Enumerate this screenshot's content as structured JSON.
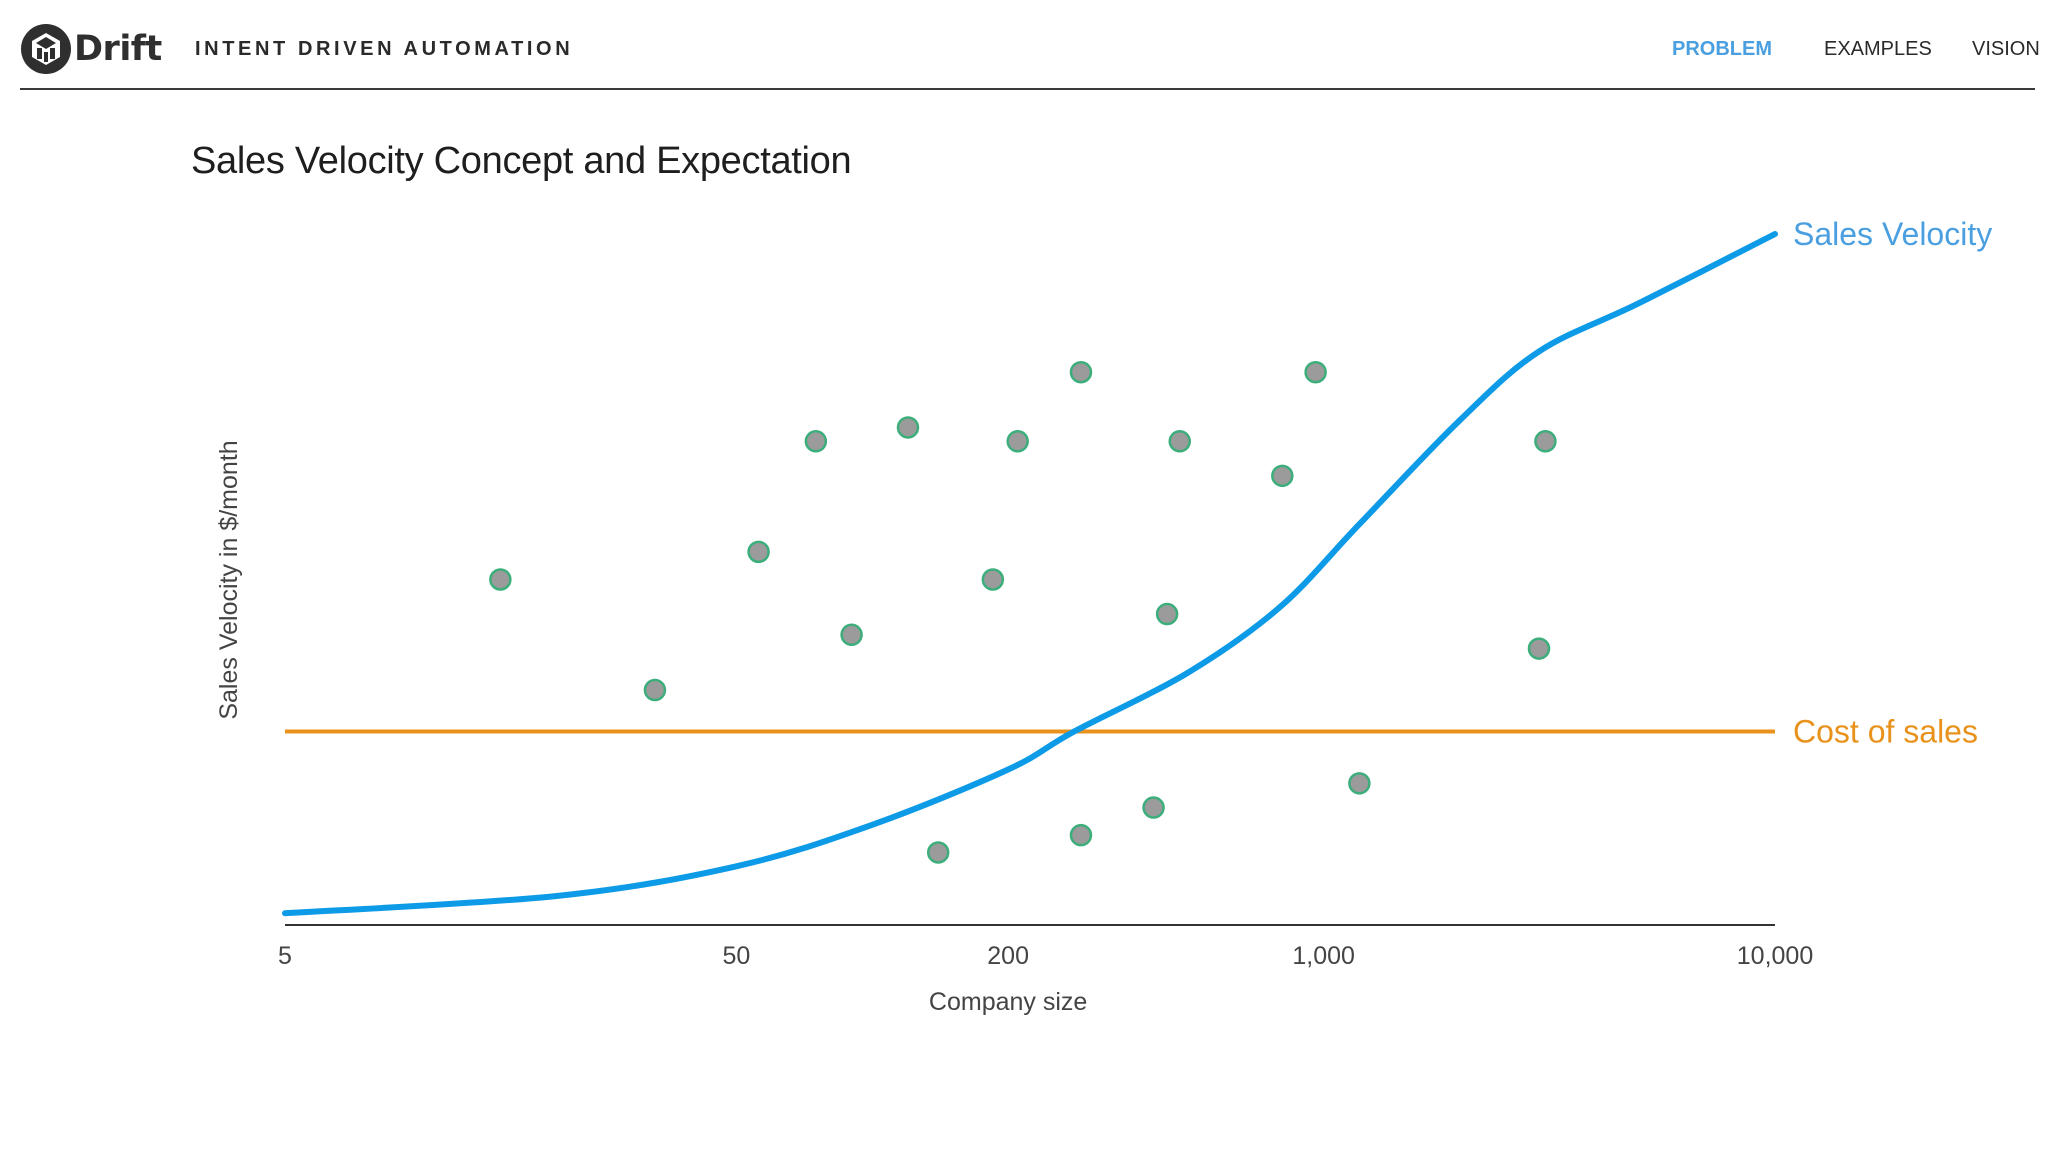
{
  "header": {
    "brand": "Drift",
    "tagline": "INTENT DRIVEN AUTOMATION",
    "nav": [
      {
        "label": "PROBLEM",
        "active": true
      },
      {
        "label": "EXAMPLES",
        "active": false
      },
      {
        "label": "VISION",
        "active": false
      }
    ],
    "icons": {
      "logo": "drift-logo-icon"
    }
  },
  "colors": {
    "accent": "#4a9fe0",
    "sales_velocity_line": "#0d9be8",
    "sales_velocity_label": "#4a9fe0",
    "cost_line": "#e8921c",
    "cost_label": "#e8921c",
    "point_fill": "#9b9b9b",
    "point_stroke": "#3cae7c"
  },
  "page_title": "Sales Velocity Concept and Expectation",
  "chart_data": {
    "type": "line",
    "title": "Sales Velocity Concept and Expectation",
    "xlabel": "Company size",
    "ylabel": "Sales Velocity in $/month",
    "x_scale": "log",
    "xlim": [
      5,
      10000
    ],
    "ylim": [
      0,
      100
    ],
    "x_ticks": [
      5,
      50,
      200,
      1000,
      10000
    ],
    "x_tick_labels": [
      "5",
      "50",
      "200",
      "1,000",
      "10,000"
    ],
    "grid": false,
    "legend": "inline labels at right end of lines",
    "series": [
      {
        "name": "Sales Velocity",
        "type": "line",
        "x": [
          5,
          20,
          50,
          100,
          200,
          280,
          500,
          800,
          1200,
          2000,
          3000,
          5000,
          10000
        ],
        "y": [
          1.7,
          4.2,
          8.5,
          14.5,
          22.5,
          28,
          36.5,
          46,
          58,
          73,
          83,
          90,
          100
        ]
      },
      {
        "name": "Cost of sales",
        "type": "line",
        "x": [
          5,
          10000
        ],
        "y": [
          28,
          28
        ]
      },
      {
        "name": "",
        "type": "scatter",
        "points": [
          {
            "x": 15,
            "y": 50
          },
          {
            "x": 33,
            "y": 34
          },
          {
            "x": 56,
            "y": 54
          },
          {
            "x": 75,
            "y": 70
          },
          {
            "x": 90,
            "y": 42
          },
          {
            "x": 120,
            "y": 72
          },
          {
            "x": 140,
            "y": 10.5
          },
          {
            "x": 185,
            "y": 50
          },
          {
            "x": 210,
            "y": 70
          },
          {
            "x": 290,
            "y": 80
          },
          {
            "x": 420,
            "y": 17
          },
          {
            "x": 290,
            "y": 13
          },
          {
            "x": 450,
            "y": 45
          },
          {
            "x": 480,
            "y": 70
          },
          {
            "x": 810,
            "y": 65
          },
          {
            "x": 960,
            "y": 80
          },
          {
            "x": 1200,
            "y": 20.5
          },
          {
            "x": 3000,
            "y": 40
          },
          {
            "x": 3100,
            "y": 70
          }
        ]
      }
    ]
  }
}
